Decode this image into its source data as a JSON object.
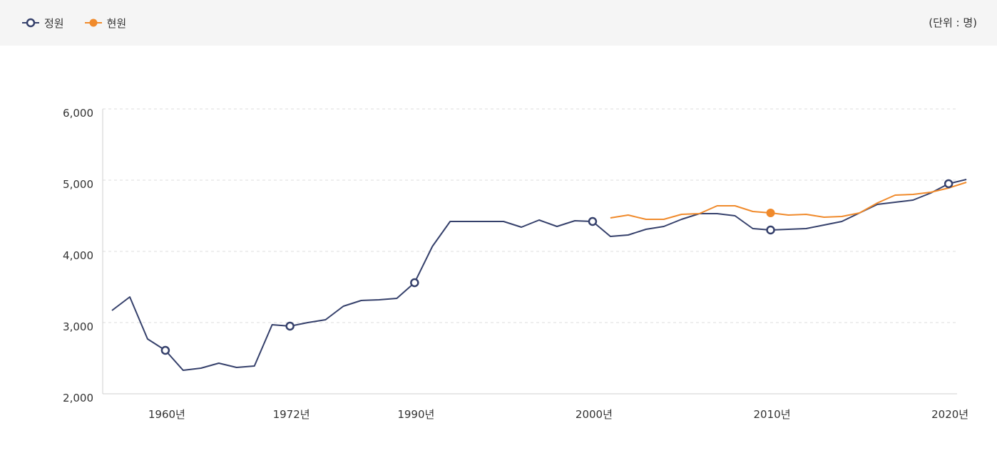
{
  "legend": {
    "items": [
      {
        "label": "정원",
        "color": "#35406b",
        "marker": "hollow-circle"
      },
      {
        "label": "현원",
        "color": "#f08a2b",
        "marker": "filled-circle"
      }
    ],
    "unit": "(단위 : 명)"
  },
  "chart_data": {
    "type": "line",
    "title": "",
    "xlabel": "",
    "ylabel": "",
    "ylim": [
      2000,
      6000
    ],
    "y_ticks": [
      "6,000",
      "5,000",
      "4,000",
      "3,000",
      "2,000"
    ],
    "y_tick_values": [
      6000,
      5000,
      4000,
      3000,
      2000
    ],
    "x_tick_labels": [
      "1960년",
      "1972년",
      "1990년",
      "2000년",
      "2010년",
      "2020년"
    ],
    "x_tick_index": [
      3,
      10,
      17,
      27,
      37,
      47
    ],
    "grid": true,
    "series": [
      {
        "name": "정원",
        "color": "#35406b",
        "start_index": 0,
        "highlight_index": [
          3,
          10,
          17,
          27,
          37,
          47
        ],
        "values": [
          3170,
          3360,
          2770,
          2610,
          2330,
          2360,
          2430,
          2370,
          2390,
          2970,
          2950,
          3000,
          3040,
          3230,
          3310,
          3320,
          3340,
          3560,
          4070,
          4420,
          4420,
          4420,
          4420,
          4340,
          4440,
          4350,
          4430,
          4420,
          4210,
          4230,
          4310,
          4350,
          4450,
          4530,
          4530,
          4500,
          4320,
          4300,
          4310,
          4320,
          4370,
          4420,
          4540,
          4660,
          4690,
          4720,
          4820,
          4950,
          5010
        ]
      },
      {
        "name": "현원",
        "color": "#f08a2b",
        "start_index": 28,
        "highlight_index": [
          37
        ],
        "values": [
          4470,
          4510,
          4450,
          4450,
          4520,
          4530,
          4640,
          4640,
          4560,
          4540,
          4510,
          4520,
          4480,
          4490,
          4540,
          4680,
          4790,
          4800,
          4830,
          4890,
          4970
        ]
      }
    ]
  }
}
